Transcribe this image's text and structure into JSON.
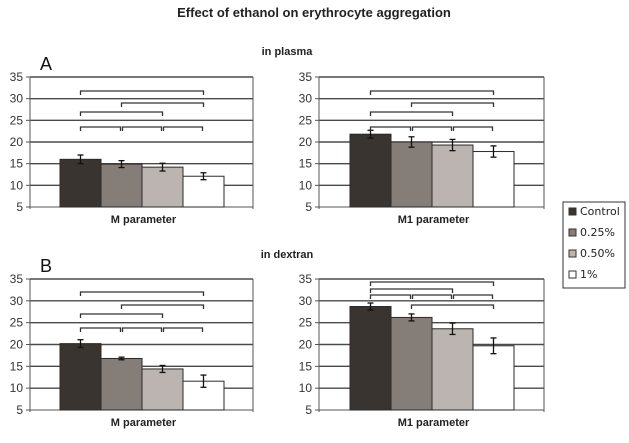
{
  "title": "Effect of ethanol on erythrocyte aggregation",
  "sections": [
    {
      "letter": "A",
      "subtitle": "in plasma"
    },
    {
      "letter": "B",
      "subtitle": "in dextran"
    }
  ],
  "legend": {
    "position": "right",
    "items": [
      {
        "label": "Control",
        "color": "#3a3430"
      },
      {
        "label": "0.25%",
        "color": "#857d78"
      },
      {
        "label": "0.50%",
        "color": "#bcb4b0"
      },
      {
        "label": "1%",
        "color": "#ffffff"
      }
    ]
  },
  "chart_data": [
    {
      "type": "bar",
      "panel": "A-left",
      "section": "in plasma",
      "xlabel": "M parameter",
      "ylabel": "",
      "ylim": [
        5,
        35
      ],
      "yticks": [
        5,
        10,
        15,
        20,
        25,
        30,
        35
      ],
      "grid": true,
      "categories": [
        "Control",
        "0.25%",
        "0.50%",
        "1%"
      ],
      "values": [
        16.0,
        14.9,
        14.2,
        12.1
      ],
      "errors": [
        1.0,
        0.8,
        0.9,
        0.8
      ],
      "brackets": [
        [
          0,
          3
        ],
        [
          1,
          3
        ],
        [
          0,
          2
        ],
        [
          0,
          1
        ],
        [
          1,
          2
        ],
        [
          2,
          3
        ]
      ]
    },
    {
      "type": "bar",
      "panel": "A-right",
      "section": "in plasma",
      "xlabel": "M1 parameter",
      "ylabel": "",
      "ylim": [
        5,
        35
      ],
      "yticks": [
        5,
        10,
        15,
        20,
        25,
        30,
        35
      ],
      "grid": true,
      "categories": [
        "Control",
        "0.25%",
        "0.50%",
        "1%"
      ],
      "values": [
        21.8,
        20.0,
        19.3,
        17.8
      ],
      "errors": [
        0.9,
        1.2,
        1.3,
        1.3
      ],
      "brackets": [
        [
          0,
          3
        ],
        [
          1,
          3
        ],
        [
          0,
          2
        ],
        [
          0,
          1
        ],
        [
          1,
          2
        ],
        [
          2,
          3
        ]
      ]
    },
    {
      "type": "bar",
      "panel": "B-left",
      "section": "in dextran",
      "xlabel": "M parameter",
      "ylabel": "",
      "ylim": [
        5,
        35
      ],
      "yticks": [
        5,
        10,
        15,
        20,
        25,
        30,
        35
      ],
      "grid": true,
      "categories": [
        "Control",
        "0.25%",
        "0.50%",
        "1%"
      ],
      "values": [
        20.2,
        16.8,
        14.4,
        11.6
      ],
      "errors": [
        0.9,
        0.3,
        0.8,
        1.4
      ],
      "brackets": [
        [
          0,
          3
        ],
        [
          1,
          3
        ],
        [
          0,
          2
        ],
        [
          0,
          1
        ],
        [
          1,
          2
        ],
        [
          2,
          3
        ]
      ]
    },
    {
      "type": "bar",
      "panel": "B-right",
      "section": "in dextran",
      "xlabel": "M1 parameter",
      "ylabel": "",
      "ylim": [
        5,
        35
      ],
      "yticks": [
        5,
        10,
        15,
        20,
        25,
        30,
        35
      ],
      "grid": true,
      "categories": [
        "Control",
        "0.25%",
        "0.50%",
        "1%"
      ],
      "values": [
        28.7,
        26.2,
        23.6,
        19.7
      ],
      "errors": [
        0.8,
        0.8,
        1.3,
        1.8
      ],
      "brackets": [
        [
          0,
          3
        ],
        [
          0,
          2
        ],
        [
          0,
          1
        ],
        [
          1,
          2
        ],
        [
          2,
          3
        ],
        [
          1,
          3
        ]
      ]
    }
  ]
}
